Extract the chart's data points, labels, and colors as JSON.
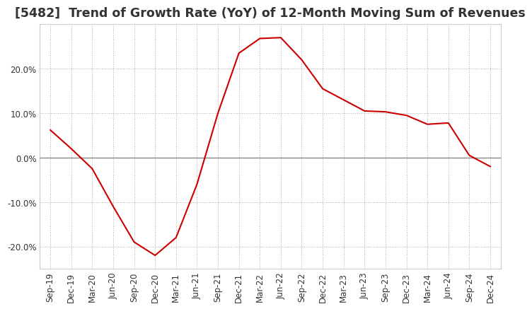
{
  "title": "[5482]  Trend of Growth Rate (YoY) of 12-Month Moving Sum of Revenues",
  "line_color": "#cc0000",
  "background_color": "#ffffff",
  "grid_color": "#aaaaaa",
  "zero_line_color": "#888888",
  "x_labels": [
    "Sep-19",
    "Dec-19",
    "Mar-20",
    "Jun-20",
    "Sep-20",
    "Dec-20",
    "Mar-21",
    "Jun-21",
    "Sep-21",
    "Dec-21",
    "Mar-22",
    "Jun-22",
    "Sep-22",
    "Dec-22",
    "Mar-23",
    "Jun-23",
    "Sep-23",
    "Dec-23",
    "Mar-24",
    "Jun-24",
    "Sep-24",
    "Dec-24"
  ],
  "y_values": [
    6.2,
    2.0,
    -2.5,
    -11.0,
    -19.0,
    -22.0,
    -18.0,
    -6.0,
    10.0,
    23.5,
    26.8,
    27.0,
    22.0,
    15.5,
    13.0,
    10.5,
    10.3,
    9.5,
    7.5,
    7.8,
    0.5,
    -2.0
  ],
  "ylim": [
    -25,
    30
  ],
  "yticks": [
    -20.0,
    -10.0,
    0.0,
    10.0,
    20.0
  ],
  "title_fontsize": 12.5,
  "tick_fontsize": 8.5
}
